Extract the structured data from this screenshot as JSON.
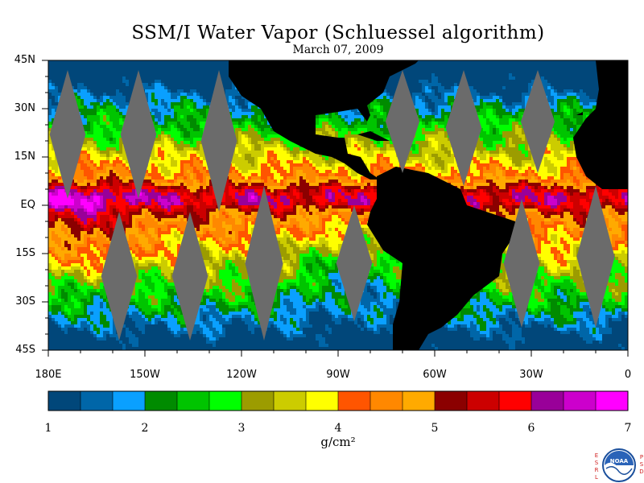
{
  "title": "SSM/I Water Vapor (Schluessel algorithm)",
  "date": "March 07, 2009",
  "units": "g/cm²",
  "map": {
    "lat_labels": [
      "45N",
      "30N",
      "15N",
      "EQ",
      "15S",
      "30S",
      "45S"
    ],
    "lon_labels": [
      "180E",
      "150W",
      "120W",
      "90W",
      "60W",
      "30W",
      "0"
    ],
    "lat_range": [
      -45,
      45
    ],
    "lon_range": [
      -180,
      0
    ],
    "land_color": "#000000",
    "no_data_color": "#6b6b6b"
  },
  "colorbar": {
    "colors": [
      "#01477a",
      "#0066a8",
      "#0aa0ff",
      "#008b00",
      "#00c400",
      "#00ff00",
      "#9c9c00",
      "#cccc00",
      "#ffff00",
      "#ff5500",
      "#ff8800",
      "#ffaa00",
      "#8b0000",
      "#cc0000",
      "#ff0000",
      "#990099",
      "#cc00cc",
      "#ff00ff"
    ],
    "ticks": [
      "1",
      "2",
      "3",
      "4",
      "5",
      "6",
      "7"
    ],
    "range": [
      1,
      7
    ]
  },
  "logo": {
    "left_text": "ESRL",
    "right_text": "PSD",
    "center_text": "NOAA"
  }
}
